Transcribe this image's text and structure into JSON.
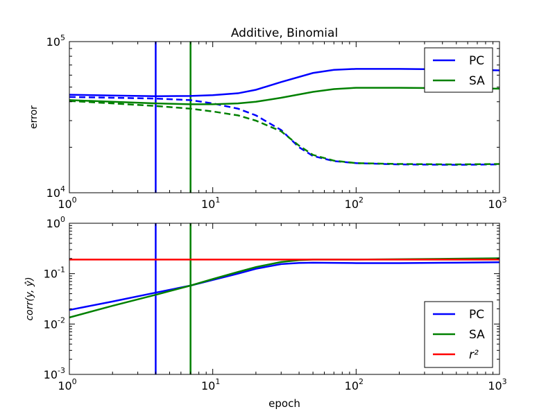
{
  "chart_data": [
    {
      "type": "line",
      "title": "Additive, Binomial",
      "xlabel": "",
      "ylabel": "error",
      "xscale": "log",
      "yscale": "log",
      "xlim": [
        1,
        1000
      ],
      "ylim": [
        10000,
        100000
      ],
      "x_ticks": [
        {
          "value": 1,
          "base": "10",
          "exp": "0"
        },
        {
          "value": 10,
          "base": "10",
          "exp": "1"
        },
        {
          "value": 100,
          "base": "10",
          "exp": "2"
        },
        {
          "value": 1000,
          "base": "10",
          "exp": "3"
        }
      ],
      "y_ticks": [
        {
          "value": 10000,
          "base": "10",
          "exp": "4"
        },
        {
          "value": 100000,
          "base": "10",
          "exp": "5"
        }
      ],
      "legend": {
        "placement": "top-right",
        "entries": [
          "PC",
          "SA"
        ]
      },
      "series": [
        {
          "name": "PC",
          "color": "#0000ff",
          "dash": "solid",
          "points": [
            [
              1,
              44500
            ],
            [
              2,
              44000
            ],
            [
              4,
              43500
            ],
            [
              7,
              43700
            ],
            [
              10,
              44200
            ],
            [
              15,
              45500
            ],
            [
              20,
              48000
            ],
            [
              30,
              54000
            ],
            [
              50,
              62000
            ],
            [
              70,
              65000
            ],
            [
              100,
              66000
            ],
            [
              200,
              66000
            ],
            [
              400,
              65500
            ],
            [
              700,
              65000
            ],
            [
              1000,
              64500
            ]
          ]
        },
        {
          "name": "PC",
          "color": "#0000ff",
          "dash": "dashed",
          "points": [
            [
              1,
              43000
            ],
            [
              2,
              42500
            ],
            [
              4,
              42000
            ],
            [
              7,
              41000
            ],
            [
              10,
              39000
            ],
            [
              15,
              36000
            ],
            [
              20,
              32500
            ],
            [
              30,
              26000
            ],
            [
              40,
              20000
            ],
            [
              50,
              17500
            ],
            [
              70,
              16200
            ],
            [
              100,
              15700
            ],
            [
              200,
              15400
            ],
            [
              500,
              15300
            ],
            [
              1000,
              15400
            ]
          ]
        },
        {
          "name": "SA",
          "color": "#008000",
          "dash": "solid",
          "points": [
            [
              1,
              41000
            ],
            [
              2,
              40000
            ],
            [
              4,
              39000
            ],
            [
              7,
              38500
            ],
            [
              10,
              38500
            ],
            [
              15,
              39000
            ],
            [
              20,
              40000
            ],
            [
              30,
              42500
            ],
            [
              50,
              46500
            ],
            [
              70,
              48500
            ],
            [
              100,
              49500
            ],
            [
              200,
              49500
            ],
            [
              400,
              49200
            ],
            [
              1000,
              48800
            ]
          ]
        },
        {
          "name": "SA",
          "color": "#008000",
          "dash": "dashed",
          "points": [
            [
              1,
              40500
            ],
            [
              2,
              39000
            ],
            [
              4,
              37500
            ],
            [
              7,
              36000
            ],
            [
              10,
              34500
            ],
            [
              15,
              32500
            ],
            [
              20,
              30000
            ],
            [
              30,
              25500
            ],
            [
              40,
              20500
            ],
            [
              50,
              17800
            ],
            [
              70,
              16300
            ],
            [
              100,
              15700
            ],
            [
              200,
              15500
            ],
            [
              500,
              15400
            ],
            [
              1000,
              15500
            ]
          ]
        }
      ],
      "vlines": [
        {
          "x": 4,
          "color": "#0000ff"
        },
        {
          "x": 7,
          "color": "#008000"
        }
      ]
    },
    {
      "type": "line",
      "title": "",
      "xlabel": "epoch",
      "ylabel": "corr(y, ŷ)",
      "xscale": "log",
      "yscale": "log",
      "xlim": [
        1,
        1000
      ],
      "ylim": [
        0.001,
        1
      ],
      "x_ticks": [
        {
          "value": 1,
          "base": "10",
          "exp": "0"
        },
        {
          "value": 10,
          "base": "10",
          "exp": "1"
        },
        {
          "value": 100,
          "base": "10",
          "exp": "2"
        },
        {
          "value": 1000,
          "base": "10",
          "exp": "3"
        }
      ],
      "y_ticks": [
        {
          "value": 0.001,
          "base": "10",
          "exp": "-3"
        },
        {
          "value": 0.01,
          "base": "10",
          "exp": "-2"
        },
        {
          "value": 0.1,
          "base": "10",
          "exp": "-1"
        },
        {
          "value": 1,
          "base": "10",
          "exp": "0"
        }
      ],
      "legend": {
        "placement": "bottom-right",
        "entries": [
          "PC",
          "SA",
          "r²"
        ]
      },
      "series": [
        {
          "name": "PC",
          "color": "#0000ff",
          "dash": "solid",
          "points": [
            [
              1,
              0.019
            ],
            [
              2,
              0.028
            ],
            [
              4,
              0.042
            ],
            [
              7,
              0.058
            ],
            [
              10,
              0.075
            ],
            [
              15,
              0.1
            ],
            [
              20,
              0.125
            ],
            [
              30,
              0.155
            ],
            [
              40,
              0.163
            ],
            [
              50,
              0.165
            ],
            [
              100,
              0.162
            ],
            [
              200,
              0.162
            ],
            [
              500,
              0.165
            ],
            [
              1000,
              0.168
            ]
          ]
        },
        {
          "name": "SA",
          "color": "#008000",
          "dash": "solid",
          "points": [
            [
              1,
              0.0135
            ],
            [
              2,
              0.023
            ],
            [
              4,
              0.038
            ],
            [
              7,
              0.058
            ],
            [
              10,
              0.078
            ],
            [
              15,
              0.108
            ],
            [
              20,
              0.135
            ],
            [
              30,
              0.17
            ],
            [
              40,
              0.185
            ],
            [
              50,
              0.19
            ],
            [
              100,
              0.19
            ],
            [
              200,
              0.193
            ],
            [
              500,
              0.198
            ],
            [
              1000,
              0.202
            ]
          ]
        },
        {
          "name": "r²",
          "color": "#ff0000",
          "dash": "solid",
          "points": [
            [
              1,
              0.19
            ],
            [
              1000,
              0.19
            ]
          ]
        }
      ],
      "vlines": [
        {
          "x": 4,
          "color": "#0000ff"
        },
        {
          "x": 7,
          "color": "#008000"
        }
      ]
    }
  ]
}
